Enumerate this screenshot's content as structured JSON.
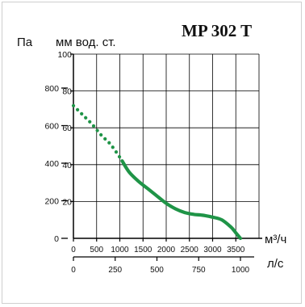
{
  "chart_data": {
    "type": "line",
    "title": "MP 302 T",
    "left_axis_unit": "Па",
    "right_axis_unit": "мм вод. ст.",
    "x_axis_unit": "м³/ч",
    "x2_axis_unit": "л/с",
    "left_ticks": [
      "0",
      "200",
      "400",
      "600",
      "800"
    ],
    "right_ticks": [
      "20",
      "40",
      "60",
      "80",
      "100"
    ],
    "x_ticks": [
      "0",
      "500",
      "1000",
      "1500",
      "2000",
      "2500",
      "3000",
      "3500"
    ],
    "x2_ticks": [
      "0",
      "250",
      "500",
      "750",
      "1000"
    ],
    "xlim": [
      0,
      4000
    ],
    "ylim": [
      0,
      100
    ],
    "grid": true,
    "line_color": "#1f9447",
    "series": [
      {
        "segment": "dotted",
        "x": [
          0,
          200,
          400,
          600,
          800,
          1000,
          1050
        ],
        "y": [
          72,
          67,
          62,
          56,
          51,
          44,
          42
        ]
      },
      {
        "segment": "solid",
        "x": [
          1050,
          1200,
          1400,
          1600,
          1800,
          2000,
          2200,
          2400,
          2600,
          2800,
          3000,
          3200,
          3400,
          3500,
          3600
        ],
        "y": [
          42,
          36,
          31,
          27,
          23,
          19,
          16,
          14,
          13,
          12.5,
          11.5,
          10,
          6,
          3,
          0
        ]
      }
    ]
  }
}
